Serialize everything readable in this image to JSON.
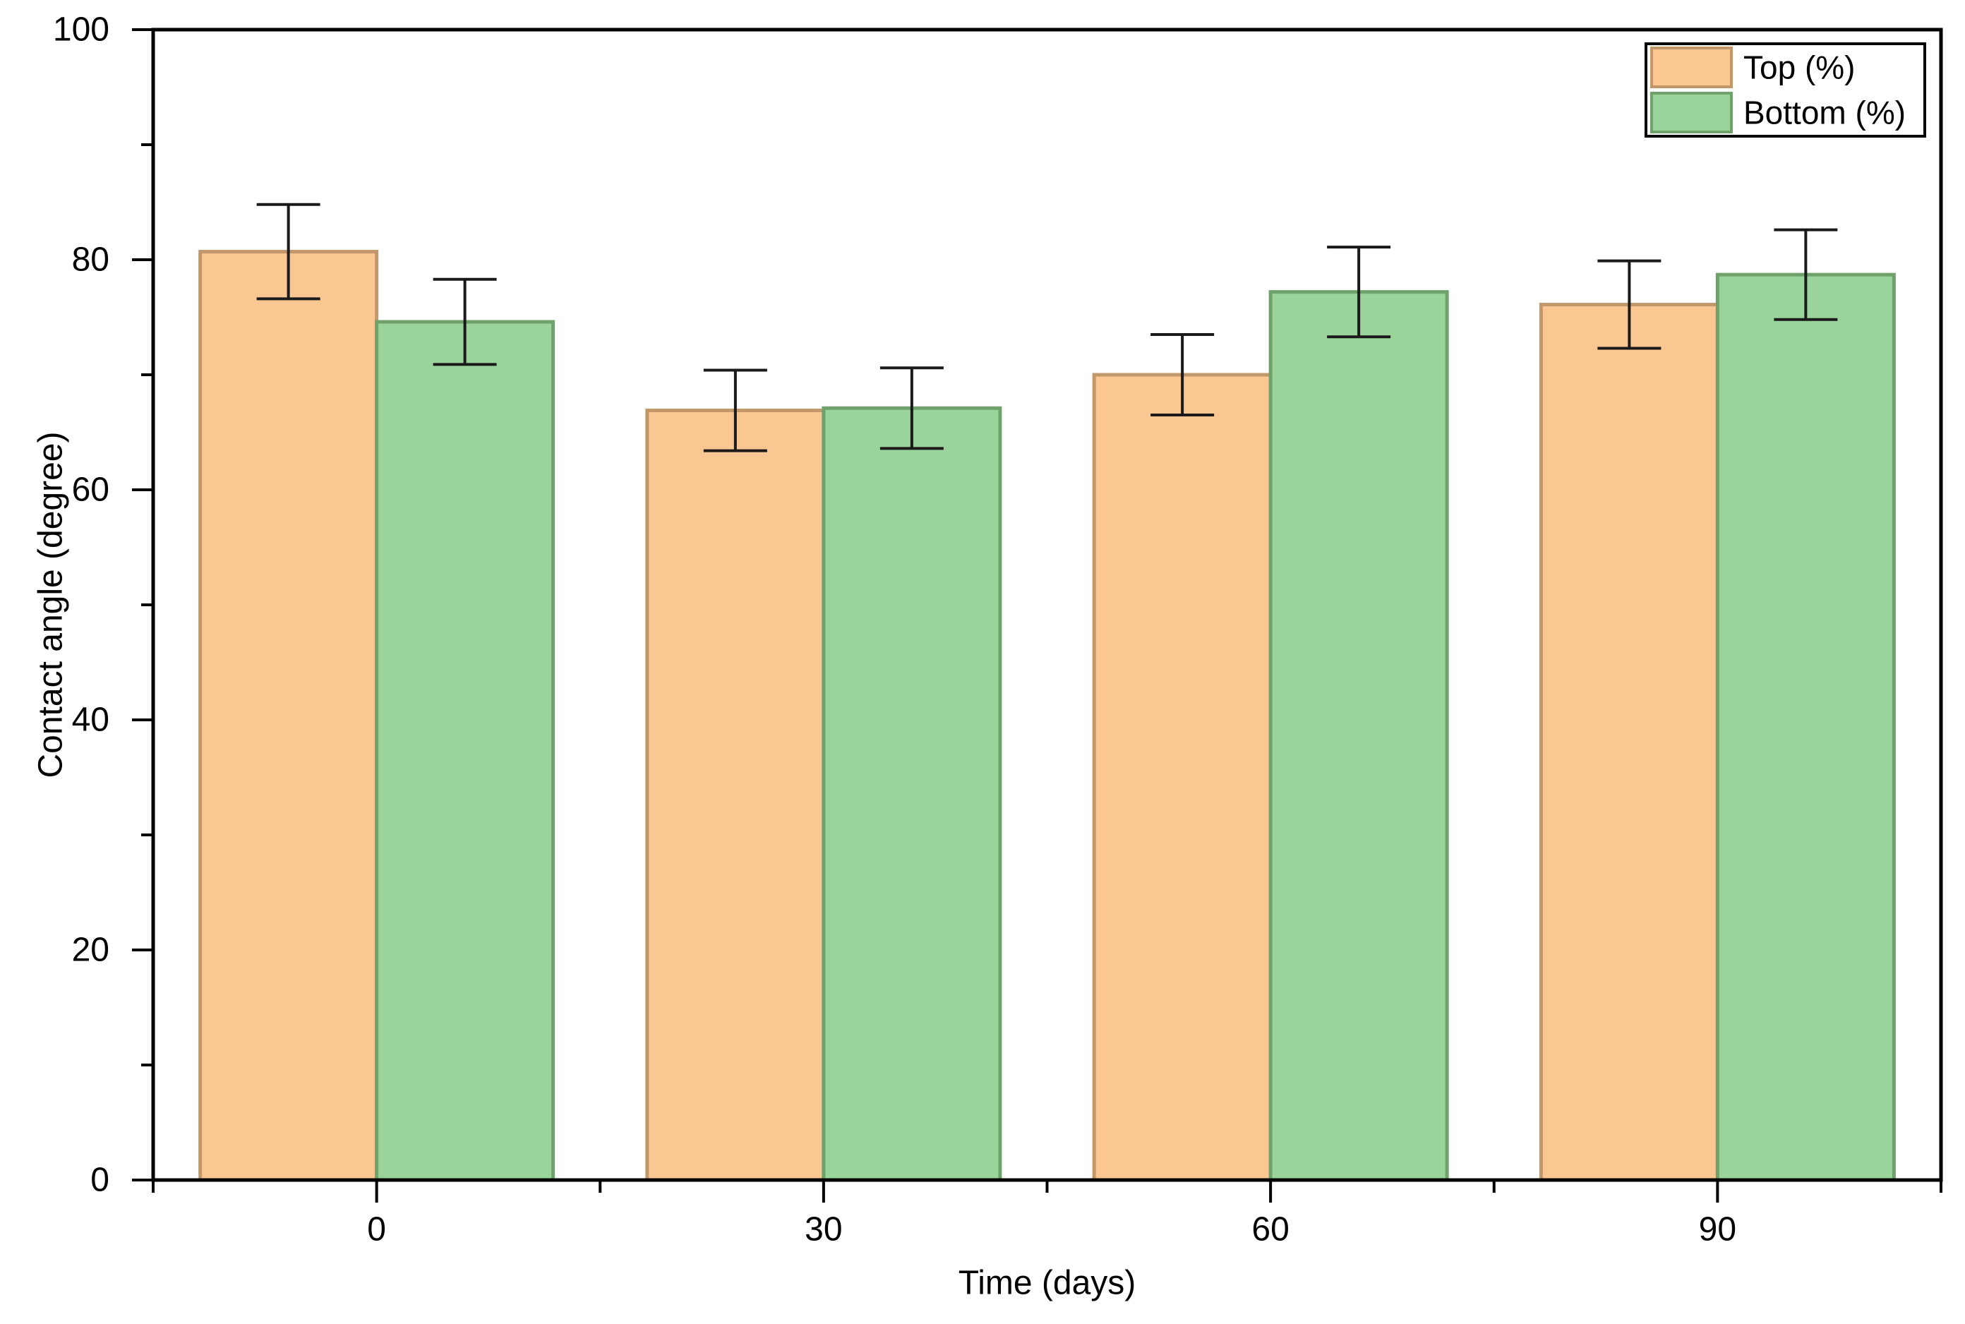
{
  "chart_data": {
    "type": "bar",
    "title": "",
    "xlabel": "Time (days)",
    "ylabel": "Contact angle  (degree)",
    "categories": [
      "0",
      "30",
      "60",
      "90"
    ],
    "series": [
      {
        "name": "Top (%)",
        "fill": "#FAC793",
        "edge": "#C2976A",
        "values": [
          80.7,
          66.9,
          70.0,
          76.1
        ],
        "errors": [
          4.1,
          3.5,
          3.5,
          3.8
        ]
      },
      {
        "name": "Bottom (%)",
        "fill": "#9BD49B",
        "edge": "#6FA26B",
        "values": [
          74.6,
          67.1,
          77.2,
          78.7
        ],
        "errors": [
          3.7,
          3.5,
          3.9,
          3.9
        ]
      }
    ],
    "ylim": [
      0,
      100
    ],
    "y_major_ticks": [
      0,
      20,
      40,
      60,
      80,
      100
    ],
    "y_minor_step": 10,
    "grid": "off",
    "legend_position": "top-right",
    "axis_color": "#000000",
    "error_bar_color": "#1a1a1a",
    "background": "#FFFFFF"
  }
}
